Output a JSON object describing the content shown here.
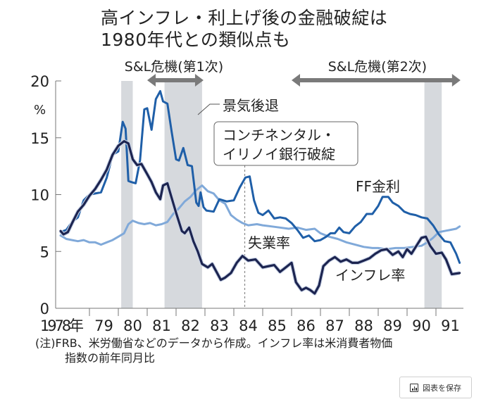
{
  "title": {
    "line1": "高インフレ・利上げ後の金融破綻は",
    "line2": "1980年代との類似点も"
  },
  "note": {
    "line1": "(注)FRB、米労働省などのデータから作成。インフレ率は米消費者物価",
    "line2": "指数の前年同月比"
  },
  "save_button": {
    "label": "図表を保存",
    "icon": "bar-chart-icon"
  },
  "colors": {
    "ff_rate": "#1f5fa8",
    "inflation": "#1c2450",
    "unemployment": "#80a9d9",
    "recession": "#d6d9dd",
    "arrow": "#7a7a7a"
  },
  "chart_data": {
    "type": "line",
    "title": "高インフレ・利上げ後の金融破綻は1980年代との類似点も",
    "xlabel": "",
    "ylabel": "%",
    "ylim": [
      0,
      20
    ],
    "xlim": [
      1978,
      1992
    ],
    "y_ticks": [
      "0",
      "5",
      "10",
      "15",
      "20"
    ],
    "y_unit": "%",
    "x_ticks": [
      "1978年",
      "79",
      "80",
      "81",
      "82",
      "83",
      "84",
      "85",
      "86",
      "87",
      "88",
      "89",
      "90",
      "91"
    ],
    "grid": false,
    "series": [
      {
        "name": "FF金利",
        "key": "ff_rate",
        "x": [
          1978.0,
          1978.2,
          1978.4,
          1978.6,
          1978.8,
          1979.0,
          1979.2,
          1979.4,
          1979.6,
          1979.8,
          1980.0,
          1980.15,
          1980.25,
          1980.35,
          1980.45,
          1980.6,
          1980.75,
          1980.9,
          1981.0,
          1981.15,
          1981.3,
          1981.45,
          1981.55,
          1981.7,
          1981.85,
          1982.0,
          1982.1,
          1982.25,
          1982.4,
          1982.55,
          1982.7,
          1982.78,
          1982.85,
          1982.95,
          1983.05,
          1983.3,
          1983.5,
          1983.75,
          1984.0,
          1984.2,
          1984.4,
          1984.55,
          1984.7,
          1984.85,
          1985.0,
          1985.2,
          1985.4,
          1985.6,
          1985.8,
          1986.0,
          1986.2,
          1986.4,
          1986.6,
          1986.8,
          1987.0,
          1987.2,
          1987.35,
          1987.5,
          1987.65,
          1987.8,
          1988.0,
          1988.2,
          1988.4,
          1988.6,
          1988.8,
          1989.0,
          1989.15,
          1989.35,
          1989.5,
          1989.7,
          1989.9,
          1990.1,
          1990.3,
          1990.5,
          1990.7,
          1990.9,
          1991.1,
          1991.3,
          1991.5,
          1991.7,
          1991.82
        ],
        "values": [
          6.7,
          6.9,
          7.6,
          8.0,
          9.5,
          10.0,
          10.1,
          10.2,
          11.5,
          13.5,
          13.8,
          16.4,
          15.8,
          11.2,
          11.1,
          11.0,
          13.0,
          17.5,
          17.6,
          15.7,
          18.4,
          19.1,
          18.2,
          18.0,
          15.5,
          13.1,
          13.0,
          14.1,
          12.6,
          12.5,
          9.3,
          9.0,
          10.2,
          8.9,
          8.6,
          8.5,
          9.6,
          9.4,
          9.5,
          10.6,
          11.5,
          11.6,
          9.5,
          8.4,
          8.2,
          8.6,
          7.9,
          8.0,
          7.9,
          7.5,
          6.9,
          6.2,
          6.4,
          5.9,
          6.0,
          6.3,
          6.6,
          6.6,
          7.1,
          6.7,
          6.6,
          7.2,
          7.6,
          8.3,
          8.3,
          9.0,
          9.8,
          9.8,
          9.3,
          9.0,
          8.5,
          8.3,
          8.2,
          8.0,
          7.9,
          7.3,
          6.5,
          5.9,
          5.8,
          4.8,
          4.0
        ]
      },
      {
        "name": "失業率",
        "key": "unemployment",
        "x": [
          1978.0,
          1978.2,
          1978.4,
          1978.6,
          1978.8,
          1979.0,
          1979.2,
          1979.4,
          1979.6,
          1979.8,
          1980.0,
          1980.2,
          1980.35,
          1980.5,
          1980.7,
          1980.9,
          1981.1,
          1981.3,
          1981.5,
          1981.7,
          1981.9,
          1982.1,
          1982.3,
          1982.5,
          1982.7,
          1982.9,
          1983.1,
          1983.3,
          1983.5,
          1983.7,
          1983.9,
          1984.1,
          1984.3,
          1984.5,
          1984.8,
          1985.0,
          1985.3,
          1985.6,
          1985.9,
          1986.2,
          1986.5,
          1986.8,
          1987.0,
          1987.3,
          1987.6,
          1987.9,
          1988.2,
          1988.5,
          1988.8,
          1989.0,
          1989.3,
          1989.6,
          1989.9,
          1990.2,
          1990.5,
          1990.7,
          1990.9,
          1991.1,
          1991.3,
          1991.5,
          1991.7,
          1991.82
        ],
        "values": [
          6.4,
          6.1,
          6.0,
          5.9,
          6.0,
          5.8,
          5.8,
          5.6,
          5.8,
          6.0,
          6.3,
          6.6,
          7.4,
          7.7,
          7.5,
          7.4,
          7.5,
          7.3,
          7.4,
          7.6,
          8.3,
          8.8,
          9.4,
          9.8,
          10.4,
          10.8,
          10.3,
          10.1,
          9.5,
          9.2,
          8.2,
          7.8,
          7.5,
          7.3,
          7.4,
          7.3,
          7.2,
          7.1,
          7.0,
          7.1,
          6.9,
          7.0,
          6.6,
          6.3,
          6.1,
          5.8,
          5.6,
          5.4,
          5.3,
          5.3,
          5.2,
          5.3,
          5.3,
          5.4,
          5.5,
          5.8,
          6.2,
          6.7,
          6.8,
          6.9,
          7.0,
          7.2
        ]
      },
      {
        "name": "インフレ率",
        "key": "inflation",
        "x": [
          1978.0,
          1978.1,
          1978.25,
          1978.4,
          1978.6,
          1978.8,
          1979.0,
          1979.2,
          1979.4,
          1979.6,
          1979.8,
          1980.0,
          1980.2,
          1980.35,
          1980.5,
          1980.65,
          1980.8,
          1981.0,
          1981.15,
          1981.3,
          1981.45,
          1981.55,
          1981.7,
          1981.85,
          1982.0,
          1982.2,
          1982.3,
          1982.45,
          1982.6,
          1982.75,
          1982.9,
          1983.1,
          1983.25,
          1983.4,
          1983.55,
          1983.7,
          1983.9,
          1984.1,
          1984.3,
          1984.5,
          1984.75,
          1985.0,
          1985.2,
          1985.4,
          1985.6,
          1985.8,
          1986.0,
          1986.15,
          1986.35,
          1986.5,
          1986.65,
          1986.8,
          1986.95,
          1987.1,
          1987.3,
          1987.5,
          1987.7,
          1987.9,
          1988.1,
          1988.3,
          1988.5,
          1988.7,
          1988.9,
          1989.1,
          1989.3,
          1989.5,
          1989.7,
          1989.85,
          1990.0,
          1990.15,
          1990.3,
          1990.5,
          1990.65,
          1990.8,
          1991.0,
          1991.2,
          1991.35,
          1991.55,
          1991.82
        ],
        "values": [
          6.8,
          6.5,
          6.7,
          7.5,
          8.5,
          9.1,
          9.9,
          10.5,
          11.3,
          12.2,
          13.5,
          14.3,
          14.7,
          14.5,
          13.1,
          12.6,
          12.7,
          11.8,
          11.1,
          10.2,
          9.6,
          10.8,
          11.0,
          9.7,
          8.4,
          6.8,
          6.6,
          7.1,
          5.9,
          5.0,
          3.9,
          3.6,
          3.9,
          3.2,
          2.5,
          2.7,
          3.1,
          4.0,
          4.6,
          4.2,
          4.3,
          3.6,
          3.7,
          3.8,
          3.2,
          3.6,
          4.0,
          2.3,
          1.6,
          1.8,
          1.6,
          1.3,
          2.0,
          3.7,
          4.2,
          4.5,
          4.1,
          4.3,
          4.0,
          4.0,
          4.2,
          4.4,
          4.8,
          5.1,
          5.2,
          4.7,
          5.0,
          4.5,
          5.2,
          4.8,
          5.4,
          6.2,
          6.3,
          5.5,
          4.8,
          4.9,
          4.3,
          3.0,
          3.1
        ]
      }
    ],
    "series_labels": [
      {
        "text": "FF金利",
        "key": "ff_rate"
      },
      {
        "text": "失業率",
        "key": "unemployment"
      },
      {
        "text": "インフレ率",
        "key": "inflation"
      }
    ],
    "recessions": [
      {
        "start": 1980.1,
        "end": 1980.5
      },
      {
        "start": 1981.6,
        "end": 1982.9
      },
      {
        "start": 1990.6,
        "end": 1991.2
      }
    ],
    "recession_label": "景気後退",
    "periods": [
      {
        "label": "S&L危機(第1次)",
        "start": 1981.0,
        "end": 1982.95
      },
      {
        "label": "S&L危機(第2次)",
        "start": 1986.0,
        "end": 1991.85
      }
    ],
    "annotations": [
      {
        "text_line1": "コンチネンタル・",
        "text_line2": "イリノイ銀行破綻",
        "x": 1984.38
      }
    ]
  }
}
